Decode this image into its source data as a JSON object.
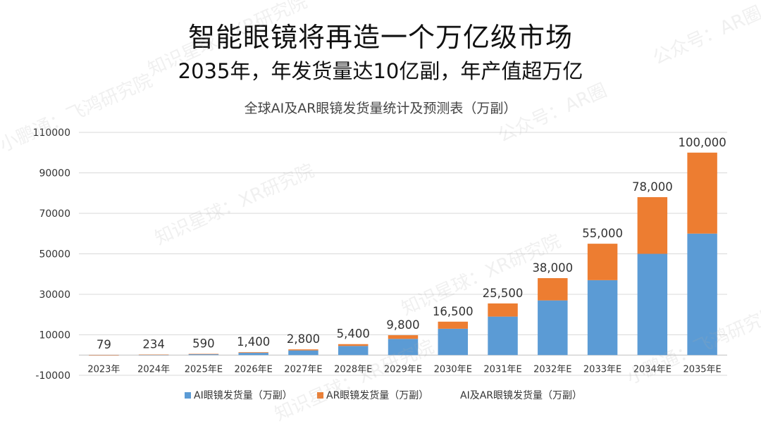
{
  "headline": "智能眼镜将再造一个万亿级市场",
  "subheadline": "2035年，年发货量达10亿副，年产值超万亿",
  "colors": {
    "ai": "#5b9bd5",
    "ar": "#ed7d31"
  },
  "chart_data": {
    "type": "bar",
    "stacked": true,
    "title": "全球AI及AR眼镜发货量统计及预测表（万副）",
    "xlabel": "",
    "ylabel": "",
    "categories": [
      "2023年",
      "2024年",
      "2025年E",
      "2026年E",
      "2027年E",
      "2028年E",
      "2029年E",
      "2030年E",
      "2031年E",
      "2032年E",
      "2033年E",
      "2034年E",
      "2035年E"
    ],
    "series": [
      {
        "name": "AI眼镜发货量（万副）",
        "color": "#5b9bd5",
        "values": [
          29,
          84,
          440,
          1100,
          2300,
          4500,
          8000,
          13000,
          19000,
          27000,
          37000,
          50000,
          60000
        ]
      },
      {
        "name": "AR眼镜发货量（万副）",
        "color": "#ed7d31",
        "values": [
          50,
          150,
          150,
          300,
          500,
          900,
          1800,
          3500,
          6500,
          11000,
          18000,
          28000,
          40000
        ]
      }
    ],
    "totals": {
      "name": "AI及AR眼镜发货量（万副）",
      "values": [
        79,
        234,
        590,
        1400,
        2800,
        5400,
        9800,
        16500,
        25500,
        38000,
        55000,
        78000,
        100000
      ],
      "labels": [
        "79",
        "234",
        "590",
        "1,400",
        "2,800",
        "5,400",
        "9,800",
        "16,500",
        "25,500",
        "38,000",
        "55,000",
        "78,000",
        "100,000"
      ]
    },
    "ylim": [
      -10000,
      110000
    ],
    "yticks": [
      -10000,
      10000,
      30000,
      50000,
      70000,
      90000,
      110000
    ],
    "grid": true,
    "legend_position": "bottom"
  },
  "watermarks": [
    "公众号：AR圈",
    "知识星球：XR研究院",
    "小鹏通：飞鸿研究院"
  ]
}
